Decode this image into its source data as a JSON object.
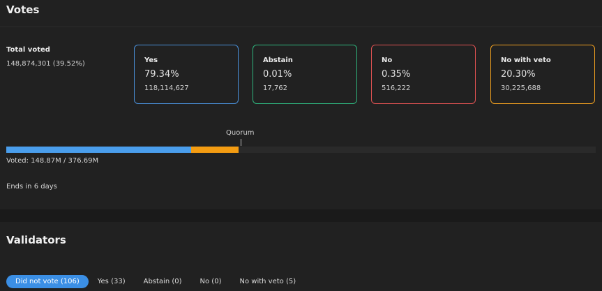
{
  "votes": {
    "title": "Votes",
    "total_label": "Total voted",
    "total_value": "148,874,301 (39.52%)",
    "cards": [
      {
        "label": "Yes",
        "pct": "79.34%",
        "count": "118,114,627",
        "color": "#4a90d9"
      },
      {
        "label": "Abstain",
        "pct": "0.01%",
        "count": "17,762",
        "color": "#2fb67e"
      },
      {
        "label": "No",
        "pct": "0.35%",
        "count": "516,222",
        "color": "#e05252"
      },
      {
        "label": "No with veto",
        "pct": "20.30%",
        "count": "30,225,688",
        "color": "#f0a020"
      }
    ],
    "quorum_label": "Quorum",
    "progress": {
      "yes_fraction": 0.3136,
      "veto_fraction": 0.0801,
      "yes_color": "#4a9eec",
      "veto_color": "#f39c12"
    },
    "voted_text": "Voted: 148.87M / 376.69M",
    "ends_text": "Ends in 6 days"
  },
  "validators": {
    "title": "Validators",
    "tabs": [
      {
        "label": "Did not vote (106)",
        "active": true
      },
      {
        "label": "Yes (33)",
        "active": false
      },
      {
        "label": "Abstain (0)",
        "active": false
      },
      {
        "label": "No (0)",
        "active": false
      },
      {
        "label": "No with veto (5)",
        "active": false
      }
    ]
  }
}
